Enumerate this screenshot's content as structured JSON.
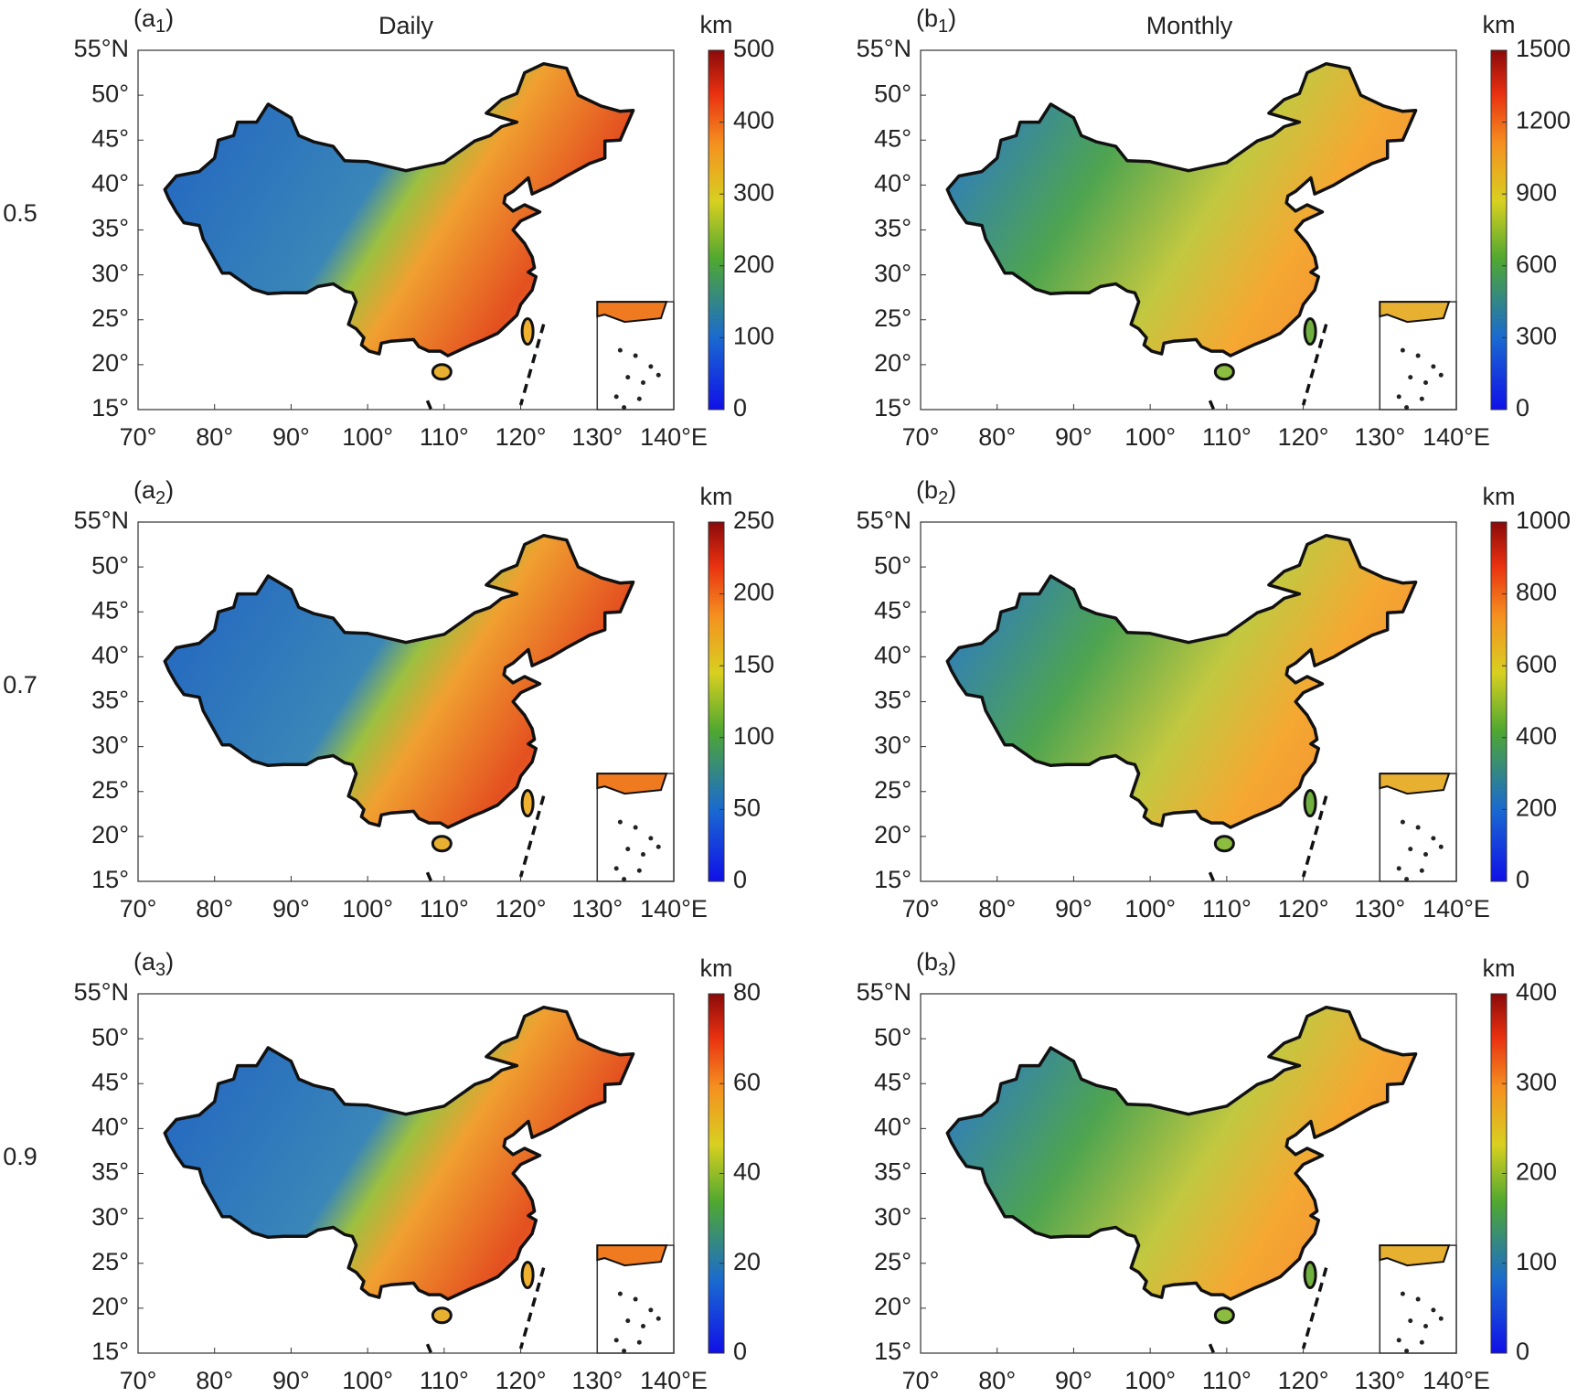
{
  "columns": [
    {
      "title": "Daily"
    },
    {
      "title": "Monthly"
    }
  ],
  "rows": [
    {
      "label": "0.5"
    },
    {
      "label": "0.7"
    },
    {
      "label": "0.9"
    }
  ],
  "axes": {
    "xlim": [
      70,
      140
    ],
    "ylim": [
      15,
      55
    ],
    "xticks": [
      {
        "value": 70,
        "label": "70°"
      },
      {
        "value": 80,
        "label": "80°"
      },
      {
        "value": 90,
        "label": "90°"
      },
      {
        "value": 100,
        "label": "100°"
      },
      {
        "value": 110,
        "label": "110°"
      },
      {
        "value": 120,
        "label": "120°"
      },
      {
        "value": 130,
        "label": "130°"
      },
      {
        "value": 140,
        "label": "140°E"
      }
    ],
    "yticks": [
      {
        "value": 15,
        "label": "15°"
      },
      {
        "value": 20,
        "label": "20°"
      },
      {
        "value": 25,
        "label": "25°"
      },
      {
        "value": 30,
        "label": "30°"
      },
      {
        "value": 35,
        "label": "35°"
      },
      {
        "value": 40,
        "label": "40°"
      },
      {
        "value": 45,
        "label": "45°"
      },
      {
        "value": 50,
        "label": "50°"
      },
      {
        "value": 55,
        "label": "55°N"
      }
    ]
  },
  "panels": [
    {
      "id": {
        "prefix": "(a",
        "sub": "1",
        "suffix": ")"
      },
      "colorbar": {
        "unit": "km",
        "lim": [
          0,
          500
        ],
        "ticks": [
          0,
          100,
          200,
          300,
          400,
          500
        ]
      }
    },
    {
      "id": {
        "prefix": "(b",
        "sub": "1",
        "suffix": ")"
      },
      "colorbar": {
        "unit": "km",
        "lim": [
          0,
          1500
        ],
        "ticks": [
          0,
          300,
          600,
          900,
          1200,
          1500
        ]
      }
    },
    {
      "id": {
        "prefix": "(a",
        "sub": "2",
        "suffix": ")"
      },
      "colorbar": {
        "unit": "km",
        "lim": [
          0,
          250
        ],
        "ticks": [
          0,
          50,
          100,
          150,
          200,
          250
        ]
      }
    },
    {
      "id": {
        "prefix": "(b",
        "sub": "2",
        "suffix": ")"
      },
      "colorbar": {
        "unit": "km",
        "lim": [
          0,
          1000
        ],
        "ticks": [
          0,
          200,
          400,
          600,
          800,
          1000
        ]
      }
    },
    {
      "id": {
        "prefix": "(a",
        "sub": "3",
        "suffix": ")"
      },
      "colorbar": {
        "unit": "km",
        "lim": [
          0,
          80
        ],
        "ticks": [
          0,
          20,
          40,
          60,
          80
        ]
      }
    },
    {
      "id": {
        "prefix": "(b",
        "sub": "3",
        "suffix": ")"
      },
      "colorbar": {
        "unit": "km",
        "lim": [
          0,
          400
        ],
        "ticks": [
          0,
          100,
          200,
          300,
          400
        ]
      }
    }
  ]
}
